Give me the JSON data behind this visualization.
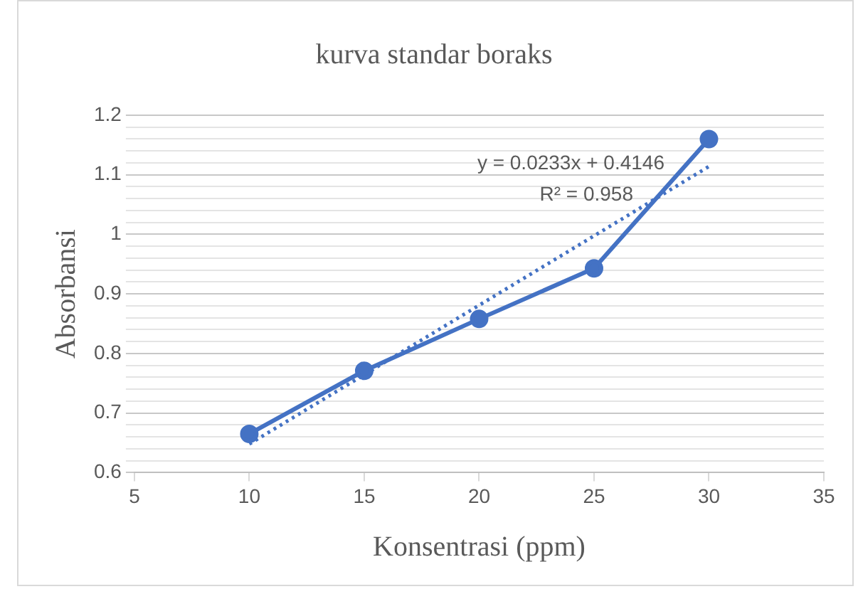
{
  "chart_data": {
    "type": "line",
    "title": "kurva standar boraks",
    "xlabel": "Konsentrasi (ppm)",
    "ylabel": "Absorbansi",
    "xlim": [
      5,
      35
    ],
    "xticks": [
      5,
      10,
      15,
      20,
      25,
      30,
      35
    ],
    "ylim": [
      0.6,
      1.2
    ],
    "yticks": [
      0.6,
      {
        "value": 0.62,
        "label": null
      },
      {
        "value": 0.64,
        "label": null
      },
      {
        "value": 0.66,
        "label": null
      },
      {
        "value": 0.68,
        "label": null
      },
      0.7,
      {
        "value": 0.72,
        "label": null
      },
      {
        "value": 0.74,
        "label": null
      },
      {
        "value": 0.76,
        "label": null
      },
      {
        "value": 0.78,
        "label": null
      },
      0.8,
      {
        "value": 0.82,
        "label": null
      },
      {
        "value": 0.84,
        "label": null
      },
      {
        "value": 0.86,
        "label": null
      },
      {
        "value": 0.88,
        "label": null
      },
      0.9,
      {
        "value": 0.92,
        "label": null
      },
      {
        "value": 0.94,
        "label": null
      },
      {
        "value": 0.96,
        "label": null
      },
      {
        "value": 0.98,
        "label": null
      },
      1,
      {
        "value": 1.02,
        "label": null
      },
      {
        "value": 1.04,
        "label": null
      },
      {
        "value": 1.06,
        "label": null
      },
      {
        "value": 1.08,
        "label": null
      },
      1.1,
      {
        "value": 1.12,
        "label": null
      },
      {
        "value": 1.14,
        "label": null
      },
      {
        "value": 1.16,
        "label": null
      },
      {
        "value": 1.18,
        "label": null
      },
      1.2
    ],
    "grid": "y",
    "legend": false,
    "series": [
      {
        "color": "#4472c4",
        "x": [
          10,
          15,
          20,
          25,
          30
        ],
        "values": [
          0.665,
          0.771,
          0.858,
          0.943,
          1.16
        ],
        "marker": "circle",
        "line_style": "solid"
      },
      {
        "type": "line",
        "color": "#4472c4",
        "x": [
          10,
          30
        ],
        "values": [
          0.648,
          1.114
        ],
        "marker": "none",
        "line_style": "dotted"
      }
    ],
    "annotations": [
      "y = 0.0233x + 0.4146",
      "R² = 0.958"
    ]
  }
}
